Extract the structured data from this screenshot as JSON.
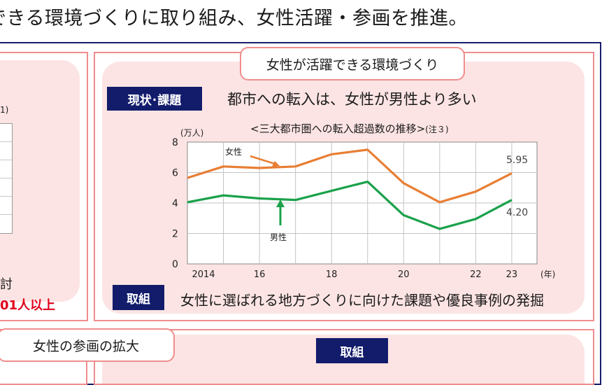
{
  "page": {
    "title": "できる環境づくりに取り組み、女性活躍・参画を推進。"
  },
  "left_panel": {
    "note": "1)",
    "text": "討",
    "highlight": "01人以上"
  },
  "main_panel": {
    "title": "女性が活躍できる環境づくり",
    "status_tag": "現状･課題",
    "headline": "都市への転入は、女性が男性より多い",
    "chart_title": "<三大都市圏への転入超過数の推移>",
    "chart_note": "(注３)",
    "action_tag": "取組",
    "action_text": "女性に選ばれる地方づくりに向けた課題や優良事例の発掘"
  },
  "bottom_panel": {
    "title": "女性の参画の拡大",
    "action_tag": "取組"
  },
  "chart_data": {
    "type": "line",
    "x": [
      2014,
      2015,
      2016,
      2017,
      2018,
      2019,
      2020,
      2021,
      2022,
      2023
    ],
    "xticks": [
      "2014",
      "16",
      "18",
      "20",
      "22",
      "23"
    ],
    "xunit": "(年)",
    "ylabel": "(万人)",
    "yticks": [
      "0",
      "2",
      "4",
      "6",
      "8"
    ],
    "ylim": [
      0,
      8
    ],
    "grid": true,
    "series": [
      {
        "name": "女性",
        "color": "#e87e34",
        "values": [
          5.65,
          6.4,
          6.3,
          6.4,
          7.2,
          7.5,
          5.3,
          4.05,
          4.75,
          5.95
        ],
        "end_label": "5.95"
      },
      {
        "name": "男性",
        "color": "#1ba14b",
        "values": [
          4.05,
          4.5,
          4.3,
          4.2,
          4.8,
          5.4,
          3.2,
          2.3,
          2.95,
          4.2
        ],
        "end_label": "4.20"
      }
    ]
  }
}
